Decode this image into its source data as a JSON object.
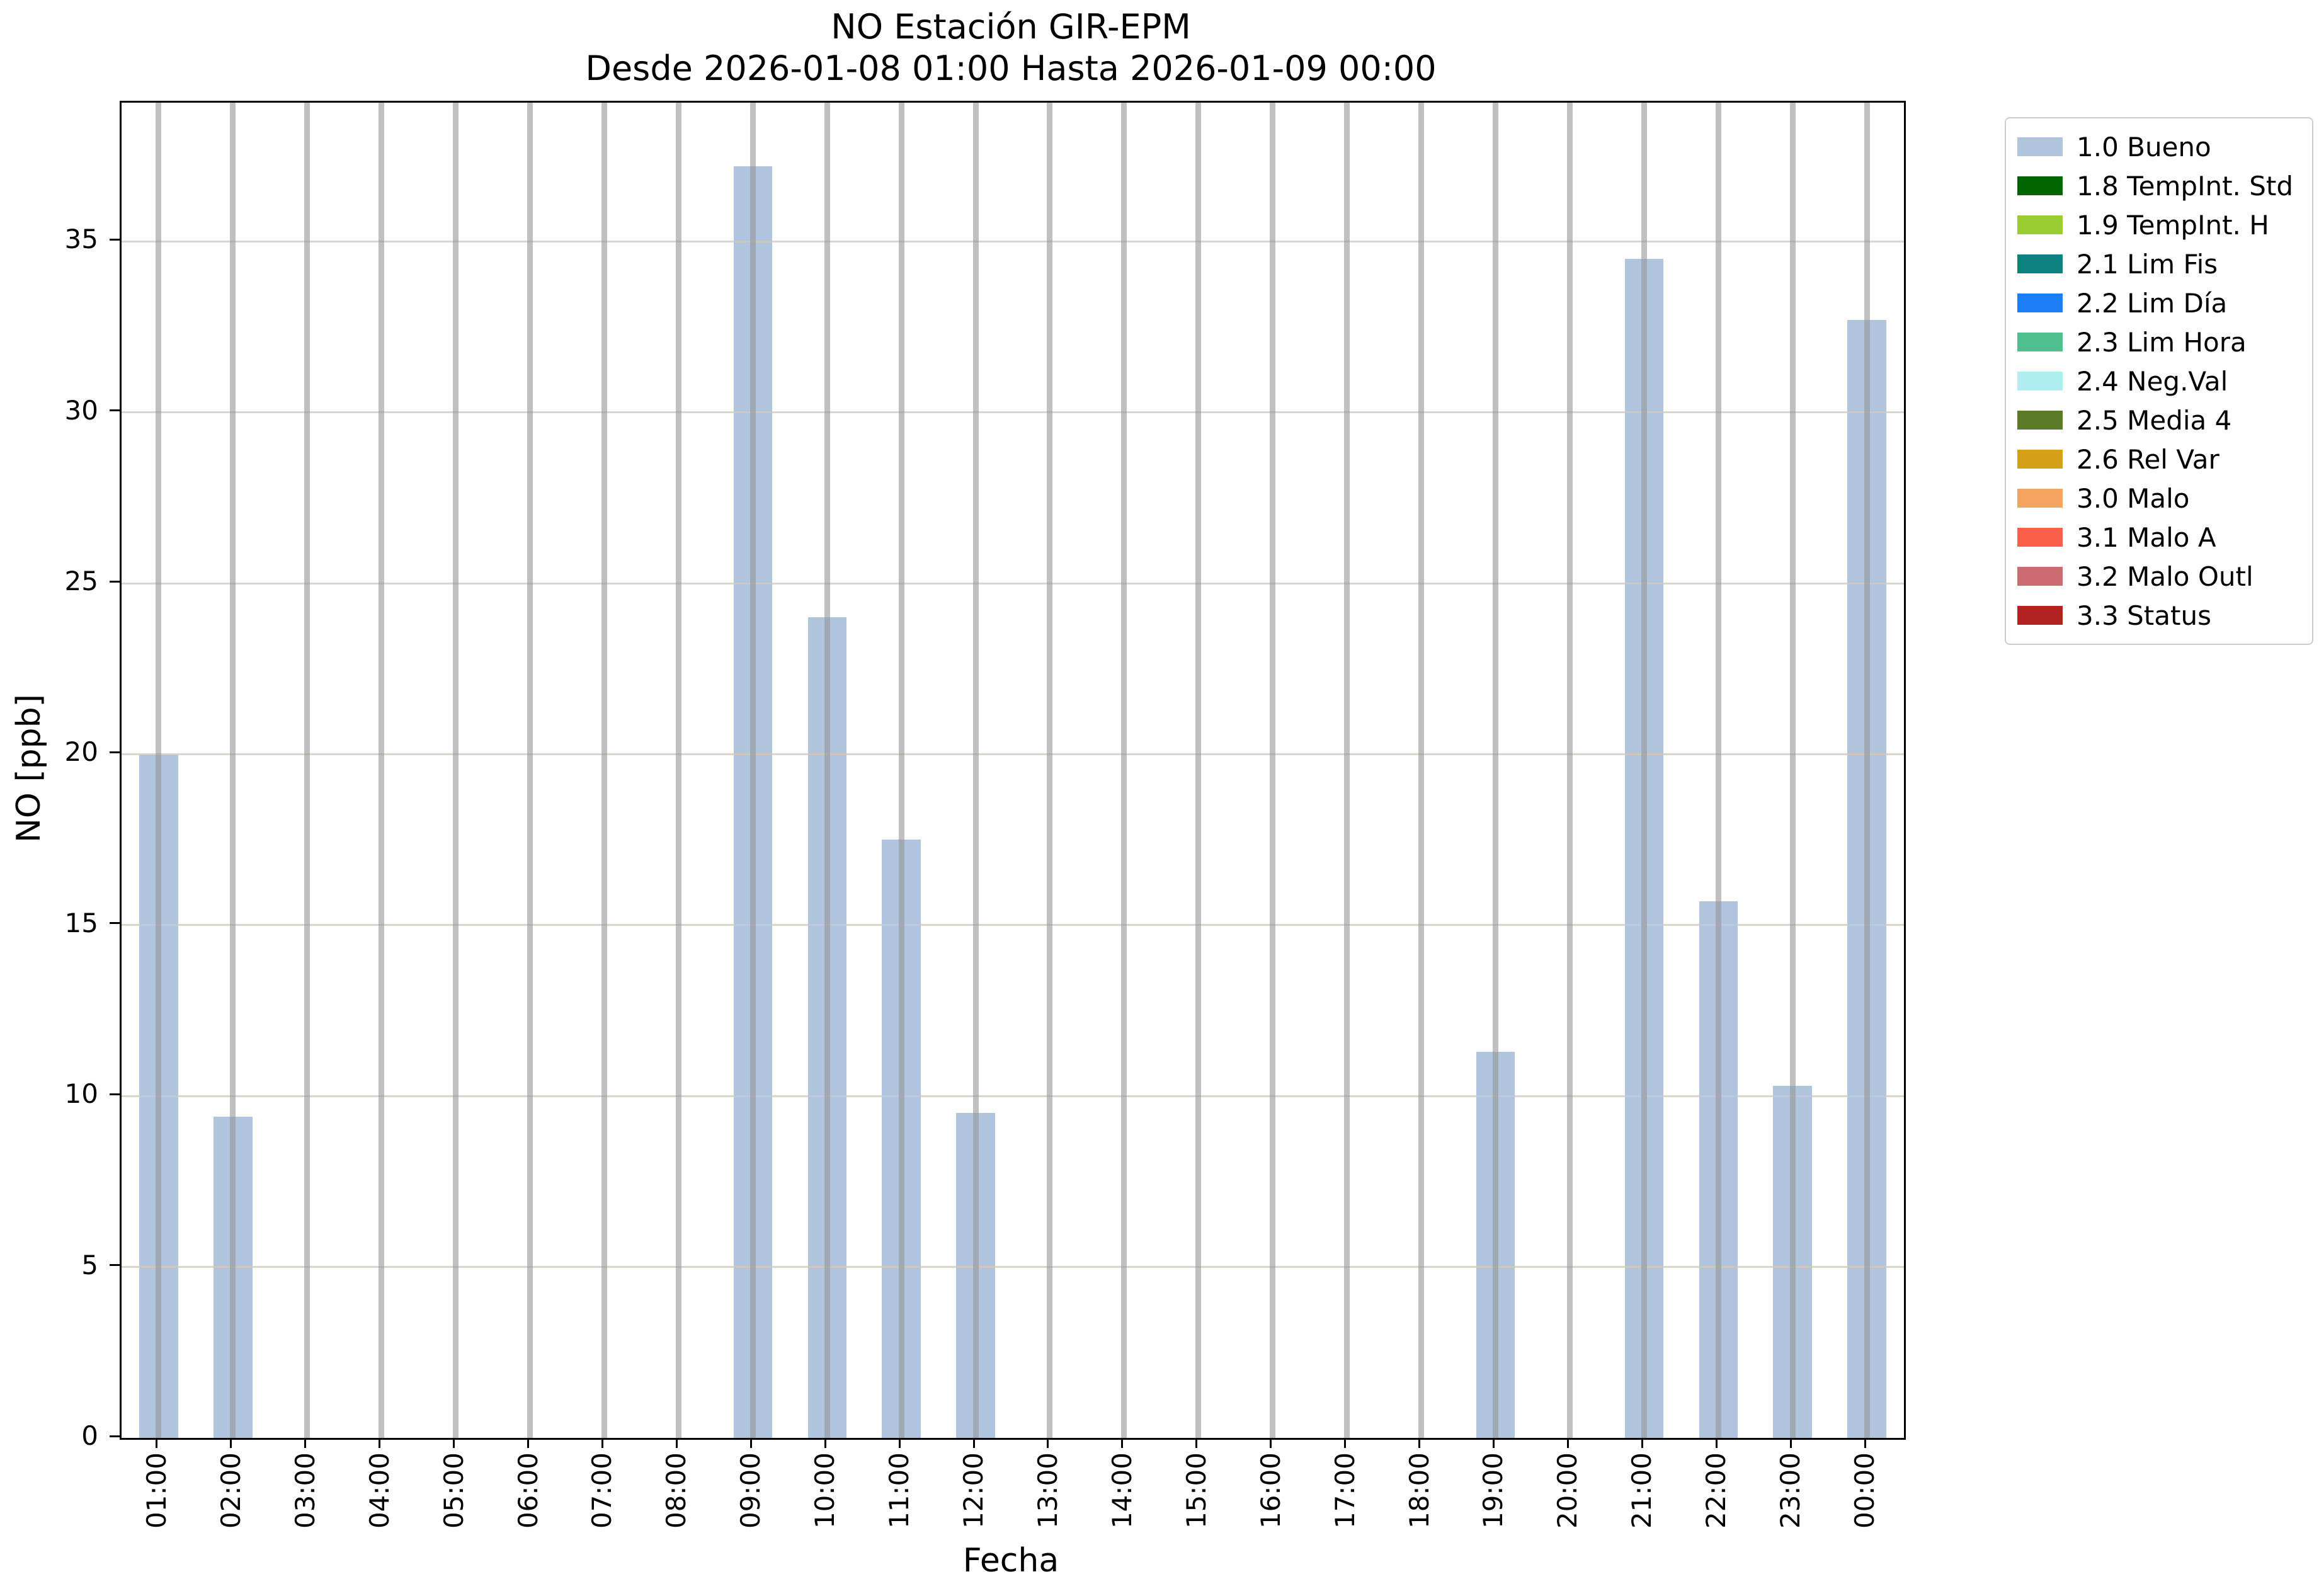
{
  "chart_data": {
    "type": "bar",
    "title": "NO Estación GIR-EPM",
    "subtitle": "Desde 2026-01-08 01:00 Hasta 2026-01-09 00:00",
    "xlabel": "Fecha",
    "ylabel": "NO [ppb]",
    "categories": [
      "01:00",
      "02:00",
      "03:00",
      "04:00",
      "05:00",
      "06:00",
      "07:00",
      "08:00",
      "09:00",
      "10:00",
      "11:00",
      "12:00",
      "13:00",
      "14:00",
      "15:00",
      "16:00",
      "17:00",
      "18:00",
      "19:00",
      "20:00",
      "21:00",
      "22:00",
      "23:00",
      "00:00"
    ],
    "values": [
      20.0,
      9.4,
      0,
      0,
      0,
      0,
      0,
      0,
      37.2,
      24.0,
      17.5,
      9.5,
      0,
      0,
      0,
      0,
      0,
      0,
      11.3,
      0,
      34.5,
      15.7,
      10.3,
      32.7
    ],
    "bar_color": "#b0c4de",
    "ylim": [
      0,
      39.06
    ],
    "yticks": [
      0,
      5,
      10,
      15,
      20,
      25,
      30,
      35
    ],
    "grid": true,
    "legend": {
      "position": "upper-right-outside",
      "entries": [
        {
          "label": "1.0 Bueno",
          "color": "#b0c4de"
        },
        {
          "label": "1.8 TempInt. Std",
          "color": "#006400"
        },
        {
          "label": "1.9 TempInt. H",
          "color": "#9acd32"
        },
        {
          "label": "2.1 Lim Fis",
          "color": "#00808c"
        },
        {
          "label": "2.2 Lim Día",
          "color": "#1e7ef5"
        },
        {
          "label": "2.3 Lim Hora",
          "color": "#4fc An"
        }
      ]
    }
  }
}
